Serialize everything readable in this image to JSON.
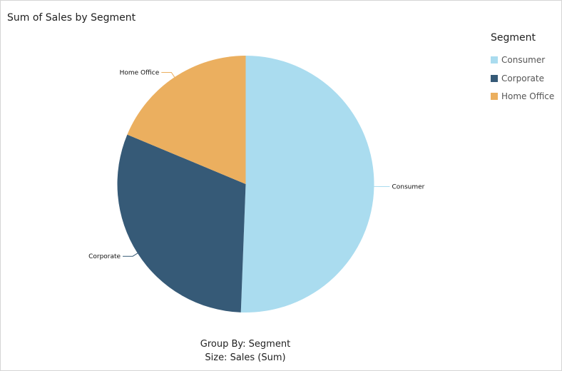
{
  "chart_data": {
    "type": "pie",
    "title": "Sum of Sales by Segment",
    "legend_title": "Segment",
    "legend_position": "top-right",
    "categories": [
      "Consumer",
      "Corporate",
      "Home Office"
    ],
    "values": [
      50.6,
      30.7,
      18.7
    ],
    "unit": "percent of total",
    "colors": [
      "#aadcef",
      "#365a77",
      "#ebaf5f"
    ],
    "footer": [
      "Group By: Segment",
      "Size: Sales (Sum)"
    ]
  }
}
